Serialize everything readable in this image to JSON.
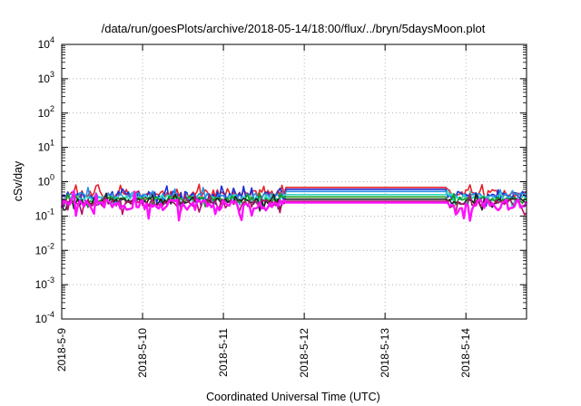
{
  "chart_data": {
    "type": "line",
    "title": "/data/run/goesPlots/archive/2018-05-14/18:00/flux/../bryn/5daysMoon.plot",
    "xlabel": "Coordinated Universal Time (UTC)",
    "ylabel": "cSv/day",
    "yscale": "log",
    "ylim": [
      0.0001,
      10000
    ],
    "y_ticks": [
      {
        "base": "10",
        "exp": "-4",
        "value": 0.0001
      },
      {
        "base": "10",
        "exp": "-3",
        "value": 0.001
      },
      {
        "base": "10",
        "exp": "-2",
        "value": 0.01
      },
      {
        "base": "10",
        "exp": "-1",
        "value": 0.1
      },
      {
        "base": "10",
        "exp": "0",
        "value": 1
      },
      {
        "base": "10",
        "exp": "1",
        "value": 10
      },
      {
        "base": "10",
        "exp": "2",
        "value": 100
      },
      {
        "base": "10",
        "exp": "3",
        "value": 1000
      },
      {
        "base": "10",
        "exp": "4",
        "value": 10000
      }
    ],
    "xlim_days": [
      0,
      5.75
    ],
    "x_ticks": [
      {
        "label": "2018-5-9",
        "day": 0
      },
      {
        "label": "2018-5-10",
        "day": 1
      },
      {
        "label": "2018-5-11",
        "day": 2
      },
      {
        "label": "2018-5-12",
        "day": 3
      },
      {
        "label": "2018-5-13",
        "day": 4
      },
      {
        "label": "2018-5-14",
        "day": 5
      }
    ],
    "grid": true,
    "flat_segment_days": [
      2.77,
      4.77
    ],
    "series": [
      {
        "color": "#e8222a",
        "base": 0.46,
        "flat": 0.68,
        "noise": 0.13,
        "seed": 11
      },
      {
        "color": "#1c2fd6",
        "base": 0.41,
        "flat": 0.6,
        "noise": 0.12,
        "seed": 23
      },
      {
        "color": "#2a8fe0",
        "base": 0.38,
        "flat": 0.52,
        "noise": 0.11,
        "seed": 37
      },
      {
        "color": "#33d9c6",
        "base": 0.33,
        "flat": 0.42,
        "noise": 0.1,
        "seed": 41
      },
      {
        "color": "#169a16",
        "base": 0.3,
        "flat": 0.36,
        "noise": 0.1,
        "seed": 53
      },
      {
        "color": "#222222",
        "base": 0.27,
        "flat": 0.31,
        "noise": 0.1,
        "seed": 67
      },
      {
        "color": "#b0126a",
        "base": 0.24,
        "flat": 0.27,
        "noise": 0.12,
        "seed": 71
      },
      {
        "color": "#ff10ff",
        "base": 0.21,
        "flat": 0.245,
        "noise": 0.18,
        "seed": 89
      }
    ]
  }
}
